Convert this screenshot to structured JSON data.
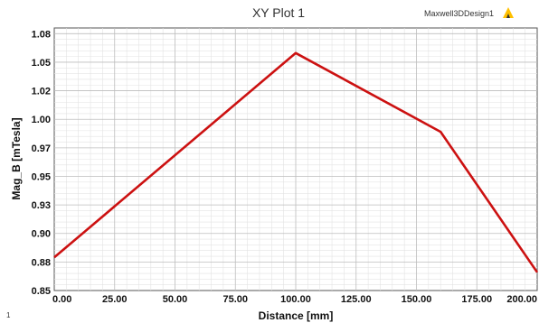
{
  "header": {
    "title": "XY Plot 1",
    "design_name": "Maxwell3DDesign1",
    "logo_icon": "ansys-logo-icon"
  },
  "corner_label": "1",
  "chart_data": {
    "type": "line",
    "title": "XY Plot 1",
    "xlabel": "Distance [mm]",
    "ylabel": "Mag_B [mTesla]",
    "xlim": [
      0,
      200
    ],
    "ylim": [
      0.85,
      1.08
    ],
    "x_ticks": [
      "0.00",
      "25.00",
      "50.00",
      "75.00",
      "100.00",
      "125.00",
      "150.00",
      "175.00",
      "200.00"
    ],
    "y_ticks": [
      "0.85",
      "0.88",
      "0.90",
      "0.93",
      "0.95",
      "0.97",
      "1.00",
      "1.02",
      "1.05",
      "1.08"
    ],
    "y_tick_values": [
      0.85,
      0.875,
      0.9,
      0.925,
      0.95,
      0.975,
      1.0,
      1.025,
      1.05,
      1.075
    ],
    "grid": true,
    "series": [
      {
        "color": "#cc1111",
        "x": [
          0,
          100,
          160,
          200
        ],
        "y": [
          0.879,
          1.058,
          0.989,
          0.866
        ]
      }
    ]
  }
}
